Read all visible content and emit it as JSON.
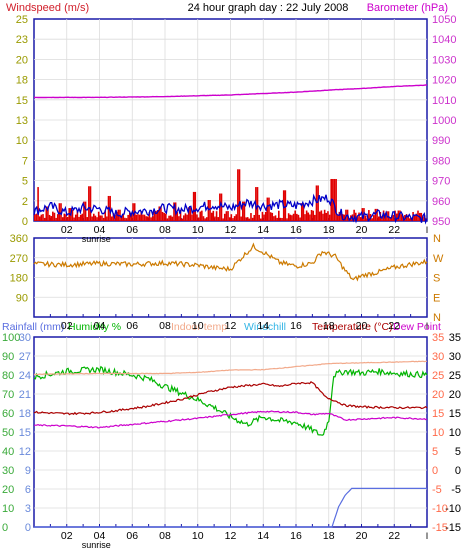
{
  "header": {
    "left_title": "Windspeed (m/s)",
    "center_title": "24 hour graph day : 22 July 2008",
    "right_title": "Barometer (hPa)"
  },
  "legend2": {
    "rainfall": "Rainfall (mm)",
    "humidity": "Humidity %",
    "indoor": "Indoor temp",
    "windchill": "Windchill",
    "temperature": "Temperature (°C)",
    "dewpoint": "Dew Point"
  },
  "sunrise_label": "sunrise",
  "colors": {
    "frame": "#1a1aa8",
    "title": "#000000",
    "wind_title": "#d11e2a",
    "baro_title": "#cc00cc",
    "right_axis": "#cc33cc",
    "left_axis": "#9a9a00",
    "wind_bar": "#e00000",
    "wind_avg": "#0000c8",
    "barometer": "#cc00cc",
    "direction": "#cc7a00",
    "humidity": "#00b400",
    "dewpoint": "#cc00cc",
    "temperature": "#aa0000",
    "indoor": "#f2a98a",
    "rainfall": "#5a6ee0",
    "windchill": "#33c0e0",
    "rain_axis": "#6a8adb",
    "hum_axis": "#3aaa3a",
    "temp_axis": "#ff6a4a",
    "indoor_title": "#f2a98a",
    "windchill_title": "#33b5e5"
  },
  "chart_data": [
    {
      "type": "bar",
      "x_ticks": [
        "02",
        "04",
        "06",
        "08",
        "10",
        "12",
        "14",
        "16",
        "18",
        "20",
        "22"
      ],
      "x_range": [
        0,
        24
      ],
      "ylim_left": [
        0,
        25
      ],
      "left_ticks": [
        "0",
        "2",
        "5",
        "7",
        "10",
        "13",
        "15",
        "18",
        "20",
        "23",
        "25"
      ],
      "ylim_right": [
        950,
        1050
      ],
      "right_ticks": [
        "950",
        "960",
        "970",
        "980",
        "990",
        "1000",
        "1010",
        "1020",
        "1030",
        "1040",
        "1050"
      ],
      "series": [
        {
          "name": "Windspeed",
          "style": "bar",
          "peaks": [
            [
              0.25,
              4.2
            ],
            [
              0.8,
              1.8
            ],
            [
              1.6,
              2.2
            ],
            [
              2.2,
              1.6
            ],
            [
              3.1,
              2.4
            ],
            [
              3.4,
              4.3
            ],
            [
              4.6,
              3.1
            ],
            [
              5.2,
              1.4
            ],
            [
              6.1,
              2.2
            ],
            [
              7.7,
              1.8
            ],
            [
              8.6,
              2.3
            ],
            [
              9.5,
              1.7
            ],
            [
              9.8,
              3.6
            ],
            [
              10.7,
              2.6
            ],
            [
              11.4,
              3.4
            ],
            [
              12.5,
              6.4
            ],
            [
              12.8,
              2.4
            ],
            [
              13.6,
              4.2
            ],
            [
              14.3,
              2.9
            ],
            [
              15.3,
              3.8
            ],
            [
              16.4,
              2.2
            ],
            [
              17.3,
              4.4
            ],
            [
              18.2,
              5.2
            ],
            [
              18.4,
              5.2
            ],
            [
              19.1,
              1.4
            ],
            [
              20.1,
              1.6
            ],
            [
              20.9,
              1.5
            ],
            [
              21.6,
              1.2
            ],
            [
              22.3,
              1.3
            ],
            [
              23.6,
              1.0
            ]
          ]
        },
        {
          "name": "Average windspeed",
          "style": "line",
          "points": [
            [
              0,
              1.2
            ],
            [
              1,
              1.8
            ],
            [
              2,
              1.0
            ],
            [
              3,
              1.6
            ],
            [
              4,
              1.5
            ],
            [
              5,
              0.9
            ],
            [
              6,
              1.2
            ],
            [
              7,
              1.3
            ],
            [
              8,
              1.6
            ],
            [
              9,
              1.4
            ],
            [
              10,
              1.7
            ],
            [
              11,
              2.0
            ],
            [
              12,
              1.6
            ],
            [
              13,
              2.3
            ],
            [
              14,
              1.9
            ],
            [
              15,
              2.0
            ],
            [
              16,
              1.9
            ],
            [
              17,
              2.5
            ],
            [
              18,
              2.9
            ],
            [
              18.6,
              1.1
            ],
            [
              19,
              0.6
            ],
            [
              20,
              0.5
            ],
            [
              21,
              0.8
            ],
            [
              22,
              0.6
            ],
            [
              23,
              0.4
            ],
            [
              24,
              0.3
            ]
          ]
        },
        {
          "name": "Barometer",
          "axis": "right",
          "style": "line",
          "points": [
            [
              0,
              1011.2
            ],
            [
              4,
              1011.2
            ],
            [
              8,
              1011.6
            ],
            [
              12,
              1012.4
            ],
            [
              16,
              1013.8
            ],
            [
              18,
              1014.8
            ],
            [
              20,
              1015.6
            ],
            [
              22,
              1016.6
            ],
            [
              24,
              1017.3
            ]
          ]
        }
      ]
    },
    {
      "type": "line",
      "x_ticks": [
        "02",
        "04",
        "06",
        "08",
        "10",
        "12",
        "14",
        "16",
        "18",
        "20",
        "22"
      ],
      "x_range": [
        0,
        24
      ],
      "ylim": [
        0,
        360
      ],
      "left_ticks": [
        "90",
        "180",
        "270",
        "360"
      ],
      "right_ticks": [
        "N",
        "E",
        "S",
        "W",
        "N"
      ],
      "series": [
        {
          "name": "Wind direction",
          "points": [
            [
              0,
              242
            ],
            [
              2,
              238
            ],
            [
              4,
              244
            ],
            [
              6,
              240
            ],
            [
              8,
              246
            ],
            [
              10,
              236
            ],
            [
              11,
              224
            ],
            [
              12,
              218
            ],
            [
              12.7,
              272
            ],
            [
              13.4,
              322
            ],
            [
              14,
              296
            ],
            [
              15,
              248
            ],
            [
              16,
              232
            ],
            [
              17,
              246
            ],
            [
              17.6,
              298
            ],
            [
              18.4,
              276
            ],
            [
              19,
              212
            ],
            [
              19.5,
              168
            ],
            [
              20,
              188
            ],
            [
              21,
              204
            ],
            [
              22,
              226
            ],
            [
              23,
              240
            ],
            [
              24,
              252
            ]
          ]
        }
      ]
    },
    {
      "type": "line",
      "x_ticks": [
        "02",
        "04",
        "06",
        "08",
        "10",
        "12",
        "14",
        "16",
        "18",
        "20",
        "22"
      ],
      "x_range": [
        0,
        24
      ],
      "ylim_rain": [
        0,
        30
      ],
      "rain_ticks": [
        "0",
        "3",
        "6",
        "9",
        "12",
        "15",
        "18",
        "21",
        "24",
        "27",
        "30"
      ],
      "ylim_humidity": [
        0,
        100
      ],
      "humidity_ticks": [
        "0",
        "10",
        "20",
        "30",
        "40",
        "50",
        "60",
        "70",
        "80",
        "90",
        "100"
      ],
      "ylim_temp": [
        -15,
        35
      ],
      "temp_ticks": [
        "-15",
        "-10",
        "-5",
        "0",
        "5",
        "10",
        "15",
        "20",
        "25",
        "30",
        "35"
      ],
      "series": [
        {
          "name": "Humidity %",
          "axis": "humidity",
          "points": [
            [
              0,
              79
            ],
            [
              2,
              82
            ],
            [
              4,
              83
            ],
            [
              6,
              80
            ],
            [
              7,
              78
            ],
            [
              8,
              74
            ],
            [
              10,
              67
            ],
            [
              11,
              63
            ],
            [
              12,
              58
            ],
            [
              13,
              54
            ],
            [
              14,
              58
            ],
            [
              15,
              56
            ],
            [
              16,
              55
            ],
            [
              17,
              51
            ],
            [
              17.6,
              48
            ],
            [
              18,
              56
            ],
            [
              18.3,
              80
            ],
            [
              19,
              82
            ],
            [
              20,
              81
            ],
            [
              21,
              82
            ],
            [
              22,
              81
            ],
            [
              24,
              80
            ]
          ]
        },
        {
          "name": "Dew Point",
          "axis": "temp",
          "points": [
            [
              0,
              11.8
            ],
            [
              2,
              11.6
            ],
            [
              4,
              11.2
            ],
            [
              6,
              12.0
            ],
            [
              8,
              12.8
            ],
            [
              10,
              13.6
            ],
            [
              12,
              14.6
            ],
            [
              14,
              15.4
            ],
            [
              16,
              15.2
            ],
            [
              17,
              14.6
            ],
            [
              18,
              14.9
            ],
            [
              19,
              13.2
            ],
            [
              20,
              13.4
            ],
            [
              22,
              13.8
            ],
            [
              24,
              13.4
            ]
          ]
        },
        {
          "name": "Temperature (°C)",
          "axis": "temp",
          "points": [
            [
              0,
              15.2
            ],
            [
              2,
              14.8
            ],
            [
              3.5,
              15.0
            ],
            [
              5,
              15.6
            ],
            [
              7,
              16.8
            ],
            [
              9,
              18.6
            ],
            [
              10.5,
              20.4
            ],
            [
              12,
              21.8
            ],
            [
              13,
              22.2
            ],
            [
              14,
              22.6
            ],
            [
              15,
              22.0
            ],
            [
              16,
              22.8
            ],
            [
              17,
              23.0
            ],
            [
              17.8,
              19.2
            ],
            [
              18.4,
              18.2
            ],
            [
              19,
              17.0
            ],
            [
              20,
              16.6
            ],
            [
              22,
              16.4
            ],
            [
              24,
              16.4
            ]
          ]
        },
        {
          "name": "Indoor temp",
          "axis": "temp",
          "points": [
            [
              0,
              25.2
            ],
            [
              4,
              25.4
            ],
            [
              8,
              25.4
            ],
            [
              10,
              25.7
            ],
            [
              12,
              26.3
            ],
            [
              14,
              26.4
            ],
            [
              16,
              27.2
            ],
            [
              18,
              28.0
            ],
            [
              20,
              28.2
            ],
            [
              22,
              28.4
            ],
            [
              24,
              28.6
            ]
          ]
        },
        {
          "name": "Rainfall (mm)",
          "axis": "rain",
          "points": [
            [
              0,
              0
            ],
            [
              18.2,
              0
            ],
            [
              18.6,
              3.2
            ],
            [
              19,
              5.0
            ],
            [
              19.4,
              6.1
            ],
            [
              24,
              6.1
            ]
          ]
        }
      ]
    }
  ]
}
